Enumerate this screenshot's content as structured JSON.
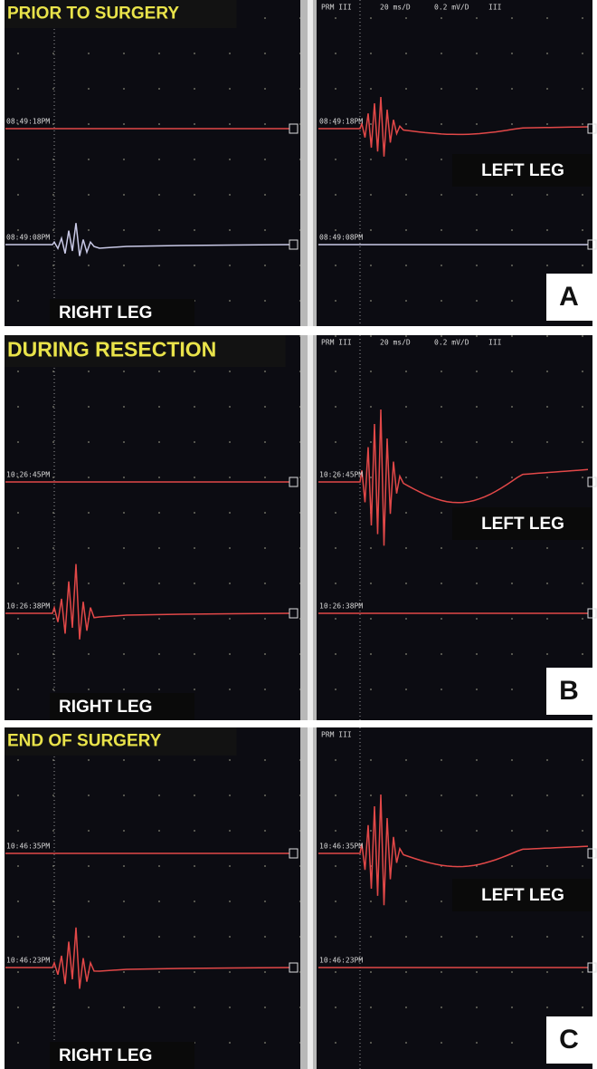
{
  "panels": [
    {
      "title": "PRIOR TO SURGERY",
      "letter": "A",
      "right_leg": "RIGHT LEG",
      "left_leg": "LEFT LEG",
      "timestamps": [
        "08:49:18PM",
        "08:49:08PM",
        "08:49:18PM",
        "08:49:08PM"
      ],
      "header": [
        "PRM III",
        "20 ms/D",
        "0.2 mV/D",
        "III"
      ]
    },
    {
      "title": "DURING RESECTION",
      "letter": "B",
      "right_leg": "RIGHT LEG",
      "left_leg": "LEFT LEG",
      "timestamps": [
        "10:26:45PM",
        "10:26:38PM",
        "10:26:45PM",
        "10:26:38PM"
      ],
      "header": [
        "PRM III",
        "20 ms/D",
        "0.2 mV/D",
        "III"
      ]
    },
    {
      "title": "END OF SURGERY",
      "letter": "C",
      "right_leg": "RIGHT LEG",
      "left_leg": "LEFT LEG",
      "timestamps": [
        "10:46:35PM",
        "10:46:23PM",
        "10:46:35PM",
        "10:46:23PM"
      ],
      "header": [
        "PRM III"
      ]
    }
  ]
}
